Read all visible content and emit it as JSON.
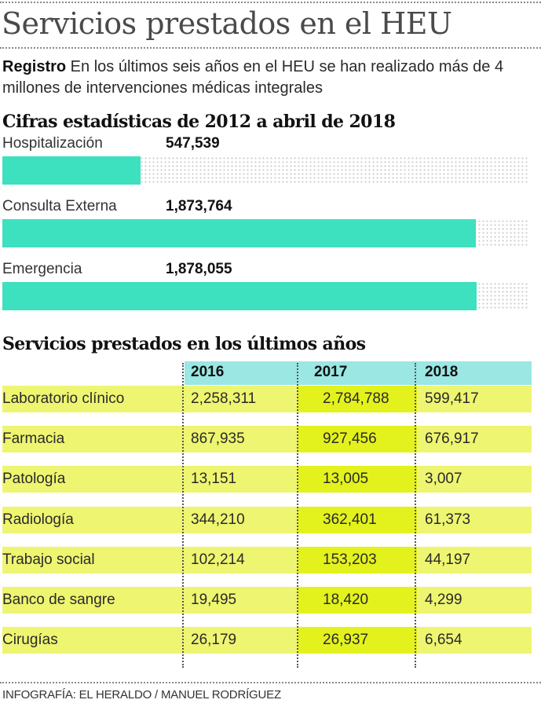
{
  "header": {
    "title": "Servicios prestados en el HEU",
    "intro_lead": "Registro",
    "intro_text": " En los últimos seis años en el HEU se han realizado más de 4 millones de intervenciones médicas integrales"
  },
  "colors": {
    "bar_fill": "#3de0bf",
    "table_header": "#9ae7e4",
    "row_fill": "#eef570",
    "highlight_2017": "#e3f21d"
  },
  "chart_data": [
    {
      "type": "bar",
      "orientation": "horizontal",
      "title": "Cifras estadísticas de 2012 a abril de 2018",
      "categories": [
        "Hospitalización",
        "Consulta Externa",
        "Emergencia"
      ],
      "values": [
        547539,
        1873764,
        1878055
      ],
      "value_labels": [
        "547,539",
        "1,873,764",
        "1,878,055"
      ],
      "xlim": [
        0,
        2080000
      ],
      "grid": false,
      "xlabel": "",
      "ylabel": ""
    },
    {
      "type": "table",
      "title": "Servicios prestados en los últimos años",
      "columns": [
        "2016",
        "2017",
        "2018"
      ],
      "highlight_column": "2017",
      "rows": [
        {
          "label": "Laboratorio clínico",
          "values": [
            "2,258,311",
            "2,784,788",
            "599,417"
          ]
        },
        {
          "label": "Farmacia",
          "values": [
            "867,935",
            "927,456",
            "676,917"
          ]
        },
        {
          "label": "Patología",
          "values": [
            "13,151",
            "13,005",
            "3,007"
          ]
        },
        {
          "label": "Radiología",
          "values": [
            "344,210",
            "362,401",
            "61,373"
          ]
        },
        {
          "label": "Trabajo social",
          "values": [
            "102,214",
            "153,203",
            "44,197"
          ]
        },
        {
          "label": "Banco de sangre",
          "values": [
            "19,495",
            "18,420",
            "4,299"
          ]
        },
        {
          "label": "Cirugías",
          "values": [
            "26,179",
            "26,937",
            "6,654"
          ]
        }
      ]
    }
  ],
  "footer": {
    "credit": "INFOGRAFÍA: EL HERALDO / MANUEL RODRÍGUEZ"
  }
}
